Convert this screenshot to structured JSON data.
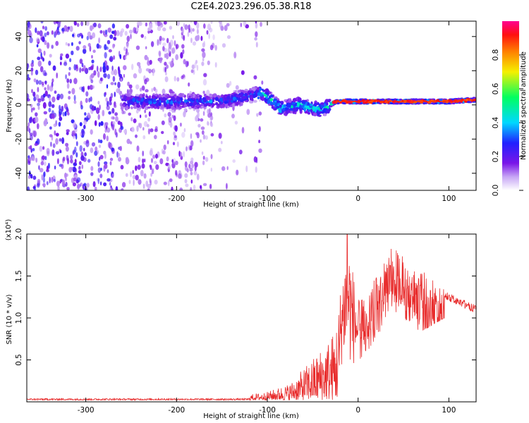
{
  "title": "C2E4.2023.296.05.38.R18",
  "chart_data": [
    {
      "type": "heatmap",
      "xlabel": "Height of straight line (km)",
      "ylabel": "Frequency (Hz)",
      "xlim": [
        -365,
        130
      ],
      "ylim": [
        -50,
        49
      ],
      "xticks": [
        -300,
        -200,
        -100,
        0,
        100
      ],
      "xtick_labels": [
        "-300",
        "-200",
        "-100",
        "0",
        "100"
      ],
      "yticks": [
        -40,
        -20,
        0,
        20,
        40
      ],
      "ytick_labels": [
        "-40",
        "-20",
        "0",
        "20",
        "40"
      ],
      "colorbar": {
        "label": "Normalized spectral amplitude",
        "range": [
          0,
          1
        ],
        "ticks": [
          0.0,
          0.2,
          0.4,
          0.6,
          0.8
        ],
        "tick_labels": [
          "0.0",
          "0.2",
          "0.4",
          "0.6",
          "0.8"
        ],
        "colormap": "rainbow (white-violet-blue-cyan-green-yellow-red-magenta)"
      },
      "ridge": [
        {
          "x": -250,
          "freq": 2
        },
        {
          "x": -200,
          "freq": 2
        },
        {
          "x": -150,
          "freq": 2
        },
        {
          "x": -105,
          "freq": 7
        },
        {
          "x": -85,
          "freq": -2
        },
        {
          "x": -65,
          "freq": 0
        },
        {
          "x": -40,
          "freq": -3
        },
        {
          "x": -25,
          "freq": 2
        },
        {
          "x": 0,
          "freq": 2
        },
        {
          "x": 50,
          "freq": 2
        },
        {
          "x": 100,
          "freq": 2
        },
        {
          "x": 130,
          "freq": 3
        }
      ]
    },
    {
      "type": "line",
      "xlabel": "Height of straight line (km)",
      "ylabel": "SNR (10 * v/v)",
      "y_multiplier": "(x10⁴)",
      "xlim": [
        -365,
        130
      ],
      "ylim": [
        0,
        2.0
      ],
      "xticks": [
        -300,
        -200,
        -100,
        0,
        100
      ],
      "xtick_labels": [
        "-300",
        "-200",
        "-100",
        "0",
        "100"
      ],
      "yticks": [
        0.5,
        1.0,
        1.5,
        2.0
      ],
      "ytick_labels": [
        "0.5",
        "1.0",
        "1.5",
        "2.0"
      ],
      "color": "#e82c2c",
      "envelope": [
        {
          "x": -365,
          "y": 0.03
        },
        {
          "x": -200,
          "y": 0.04
        },
        {
          "x": -130,
          "y": 0.05
        },
        {
          "x": -100,
          "y": 0.1
        },
        {
          "x": -75,
          "y": 0.2
        },
        {
          "x": -50,
          "y": 0.5
        },
        {
          "x": -35,
          "y": 0.7
        },
        {
          "x": -25,
          "y": 0.85
        },
        {
          "x": -12,
          "y": 2.0
        },
        {
          "x": 0,
          "y": 1.2
        },
        {
          "x": 20,
          "y": 1.5
        },
        {
          "x": 37,
          "y": 1.85
        },
        {
          "x": 60,
          "y": 1.65
        },
        {
          "x": 90,
          "y": 1.4
        },
        {
          "x": 130,
          "y": 1.2
        }
      ]
    }
  ]
}
